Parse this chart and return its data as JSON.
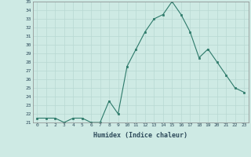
{
  "x": [
    0,
    1,
    2,
    3,
    4,
    5,
    6,
    7,
    8,
    9,
    10,
    11,
    12,
    13,
    14,
    15,
    16,
    17,
    18,
    19,
    20,
    21,
    22,
    23
  ],
  "y": [
    21.5,
    21.5,
    21.5,
    21.0,
    21.5,
    21.5,
    21.0,
    21.0,
    23.5,
    22.0,
    27.5,
    29.5,
    31.5,
    33.0,
    33.5,
    35.0,
    33.5,
    31.5,
    28.5,
    29.5,
    28.0,
    26.5,
    25.0,
    24.5
  ],
  "xlabel": "Humidex (Indice chaleur)",
  "ylabel": "",
  "ylim": [
    21,
    35
  ],
  "yticks": [
    21,
    22,
    23,
    24,
    25,
    26,
    27,
    28,
    29,
    30,
    31,
    32,
    33,
    34,
    35
  ],
  "line_color": "#2d7a6a",
  "marker_color": "#2d7a6a",
  "bg_color": "#ceeae4",
  "grid_color": "#b8d8d2",
  "label_color": "#2d4a5a"
}
